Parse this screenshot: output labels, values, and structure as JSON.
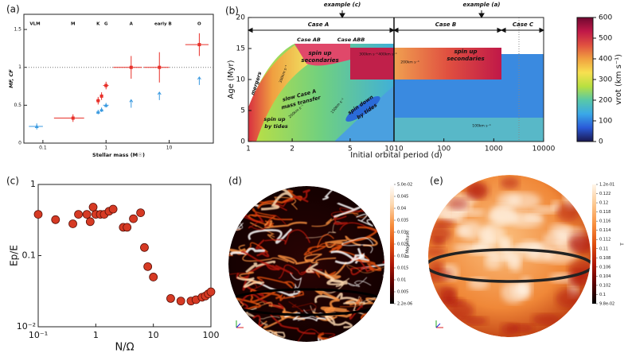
{
  "chart_data": [
    {
      "type": "scatter",
      "panel": "(a)",
      "xlabel": "Stellar mass (M☉)",
      "ylabel": "MF, CF",
      "xlog": true,
      "xlim": [
        0.05,
        50
      ],
      "xticks": [
        0.1,
        1,
        10
      ],
      "ylim": [
        0,
        1.7
      ],
      "yticks": [
        0,
        0.5,
        1,
        1.5
      ],
      "reference_line": 1,
      "annotations": [
        {
          "text": "VLM",
          "x": 0.075
        },
        {
          "text": "M",
          "x": 0.3
        },
        {
          "text": "K",
          "x": 0.75
        },
        {
          "text": "G",
          "x": 1.0
        },
        {
          "text": "A",
          "x": 2.5
        },
        {
          "text": "early B",
          "x": 8
        },
        {
          "text": "O",
          "x": 30
        }
      ],
      "series": [
        {
          "color": "#e8312a",
          "marker": "square",
          "x": [
            0.3,
            0.75,
            0.85,
            1.0,
            2.5,
            7,
            30
          ],
          "values": [
            0.33,
            0.56,
            0.62,
            0.76,
            1.0,
            1.0,
            1.3
          ],
          "yerr": [
            0.05,
            0.05,
            0.05,
            0.05,
            0.15,
            0.2,
            0.15
          ],
          "xerr": [
            0.15,
            0.05,
            0.05,
            0.1,
            1.2,
            3,
            12
          ]
        },
        {
          "color": "#3a9ae0",
          "marker": "triangle",
          "x": [
            0.08,
            0.75,
            0.85,
            1.0
          ],
          "values": [
            0.22,
            0.41,
            0.44,
            0.5
          ],
          "yerr": [
            0.04,
            0.03,
            0.03,
            0.03
          ],
          "xerr": [
            0.02,
            0.05,
            0.05,
            0.1
          ]
        },
        {
          "color": "#3a9ae0",
          "marker": "arrow",
          "x": [
            2.5,
            7,
            30
          ],
          "values": [
            0.52,
            0.62,
            0.82
          ]
        }
      ]
    },
    {
      "type": "heatmap",
      "panel": "(b)",
      "xlabel": "Initial orbital period (d)",
      "ylabel": "Age (Myr)",
      "xlog": true,
      "xlim": [
        1,
        10
      ],
      "xticks": [
        1,
        2,
        5,
        10
      ],
      "xlim_right": [
        10,
        10000
      ],
      "xticks_right": [
        10,
        100,
        1000,
        10000
      ],
      "ylim": [
        0,
        20
      ],
      "yticks": [
        0,
        5,
        10,
        15,
        20
      ],
      "colorbar_label": "vrot (km s⁻¹)",
      "clim": [
        0,
        600
      ],
      "cticks": [
        0,
        100,
        200,
        300,
        400,
        500,
        600
      ],
      "colormap": [
        "#1a1850",
        "#2a5ad8",
        "#3aa8e8",
        "#58c8a8",
        "#b8e040",
        "#f8e050",
        "#f0a040",
        "#e05040",
        "#c01848",
        "#700830"
      ],
      "annotations": [
        "example (c)",
        "example (a)",
        "Case A",
        "Case B",
        "Case C",
        "Case AB",
        "Case ABB",
        "mergers",
        "slow Case A",
        "mass transfer",
        "spin up",
        "secondaries",
        "spin up",
        "secondaries",
        "spin up",
        "by tides",
        "spin down",
        "by tides",
        "300km s⁻¹",
        "400km s⁻¹",
        "200km s⁻¹",
        "300km s⁻¹",
        "200km s⁻¹",
        "150km s⁻¹",
        "100km s⁻¹"
      ]
    },
    {
      "type": "scatter",
      "panel": "(c)",
      "xlabel": "N/Ω",
      "ylabel": "Ep/E",
      "xlog": true,
      "ylog": true,
      "xlim": [
        0.1,
        100
      ],
      "xticks": [
        {
          "value": 0.1,
          "label": "10⁻¹"
        },
        1,
        10,
        100
      ],
      "ylim": [
        0.01,
        1
      ],
      "yticks": [
        {
          "value": 0.01,
          "label": "10⁻²"
        },
        0.1,
        1
      ],
      "series": [
        {
          "color": "#d63a24",
          "marker": "circle",
          "x": [
            0.1,
            0.2,
            0.4,
            0.5,
            0.7,
            0.8,
            0.9,
            1,
            1.2,
            1.4,
            1.7,
            2,
            3,
            3.5,
            4.5,
            6,
            7,
            8,
            10,
            20,
            30,
            45,
            55,
            70,
            80,
            90,
            100
          ],
          "values": [
            0.38,
            0.32,
            0.28,
            0.38,
            0.38,
            0.3,
            0.48,
            0.38,
            0.38,
            0.38,
            0.42,
            0.45,
            0.25,
            0.25,
            0.33,
            0.4,
            0.13,
            0.07,
            0.05,
            0.025,
            0.023,
            0.023,
            0.024,
            0.026,
            0.027,
            0.029,
            0.031
          ]
        }
      ]
    },
    {
      "type": "image",
      "panel": "(d)",
      "colorbar_label": "B Magnitude",
      "clim": [
        2.2e-06,
        0.05
      ],
      "colormap": [
        "#000000",
        "#5a0000",
        "#b01808",
        "#e05010",
        "#f89040",
        "#fcd8b0",
        "#ffffff"
      ],
      "cticks": [
        {
          "value": 0.05,
          "label": "5.0e-02"
        },
        0.045,
        0.04,
        0.035,
        0.03,
        0.025,
        0.02,
        0.015,
        0.01,
        0.005,
        {
          "value": 2.2e-06,
          "label": "2.2e-06"
        }
      ]
    },
    {
      "type": "image",
      "panel": "(e)",
      "colorbar_label": "T",
      "clim": [
        0.098,
        0.124
      ],
      "colormap": [
        "#fff6ea",
        "#fcc890",
        "#f89040",
        "#e05010",
        "#b01808",
        "#5a0000",
        "#000000"
      ],
      "cticks": [
        {
          "value": 0.124,
          "label": "1.2e-01"
        },
        0.122,
        0.12,
        0.118,
        0.116,
        0.114,
        0.112,
        0.11,
        0.108,
        0.106,
        0.104,
        0.102,
        0.1,
        {
          "value": 0.098,
          "label": "9.8e-02"
        }
      ]
    }
  ]
}
